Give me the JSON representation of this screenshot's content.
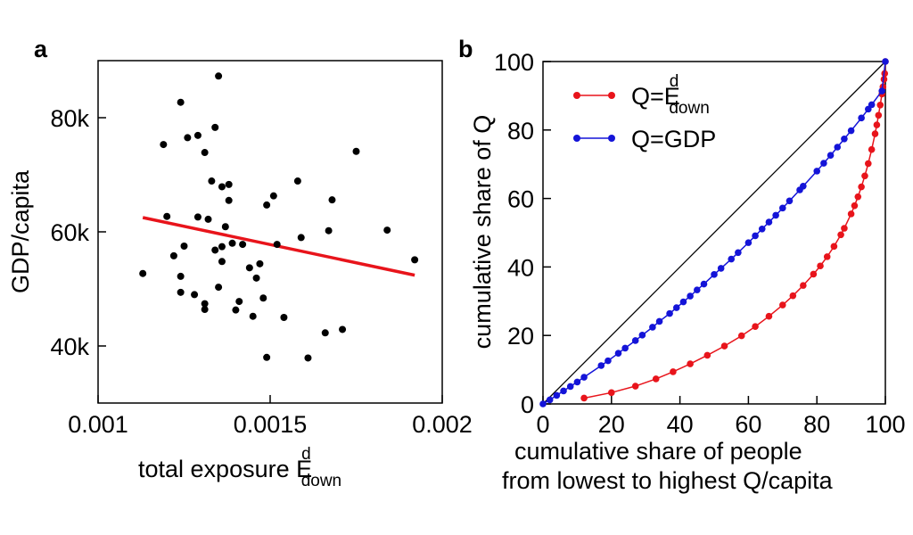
{
  "chart_data": [
    {
      "panel_label": "a",
      "type": "scatter",
      "xlabel": {
        "main": "total exposure E",
        "sup": "d",
        "sub": "down"
      },
      "ylabel": "GDP/capita",
      "xlim": [
        0.001,
        0.002
      ],
      "ylim": [
        30000,
        90000
      ],
      "xticks": [
        0.001,
        0.0015,
        0.002
      ],
      "xtick_labels": [
        "0.001",
        "0.0015",
        "0.002"
      ],
      "yticks": [
        40000,
        60000,
        80000
      ],
      "ytick_labels": [
        "40k",
        "60k",
        "80k"
      ],
      "grid": false,
      "points_color": "#000000",
      "points": [
        [
          0.00113,
          52700
        ],
        [
          0.00119,
          75300
        ],
        [
          0.0012,
          62700
        ],
        [
          0.00122,
          55800
        ],
        [
          0.00124,
          82700
        ],
        [
          0.00124,
          52200
        ],
        [
          0.00124,
          49400
        ],
        [
          0.00125,
          57500
        ],
        [
          0.00126,
          76500
        ],
        [
          0.00128,
          49000
        ],
        [
          0.00129,
          62600
        ],
        [
          0.00129,
          76900
        ],
        [
          0.00131,
          73900
        ],
        [
          0.00131,
          47400
        ],
        [
          0.00131,
          46400
        ],
        [
          0.00132,
          62200
        ],
        [
          0.00133,
          68900
        ],
        [
          0.00134,
          56800
        ],
        [
          0.00134,
          78300
        ],
        [
          0.00135,
          50300
        ],
        [
          0.00135,
          87300
        ],
        [
          0.00136,
          57400
        ],
        [
          0.00136,
          54800
        ],
        [
          0.00136,
          67900
        ],
        [
          0.00137,
          60900
        ],
        [
          0.00138,
          68300
        ],
        [
          0.00138,
          65500
        ],
        [
          0.00139,
          58000
        ],
        [
          0.0014,
          46300
        ],
        [
          0.00141,
          47800
        ],
        [
          0.00142,
          57800
        ],
        [
          0.00144,
          53700
        ],
        [
          0.00145,
          45200
        ],
        [
          0.00146,
          51900
        ],
        [
          0.00147,
          54400
        ],
        [
          0.00148,
          48400
        ],
        [
          0.00149,
          64700
        ],
        [
          0.00149,
          38000
        ],
        [
          0.00151,
          66300
        ],
        [
          0.00152,
          57800
        ],
        [
          0.00154,
          45000
        ],
        [
          0.00158,
          68900
        ],
        [
          0.00159,
          59000
        ],
        [
          0.00161,
          37900
        ],
        [
          0.00166,
          42300
        ],
        [
          0.00167,
          60200
        ],
        [
          0.00168,
          65600
        ],
        [
          0.00171,
          42900
        ],
        [
          0.00175,
          74100
        ],
        [
          0.00184,
          60300
        ],
        [
          0.00192,
          55100
        ]
      ],
      "fit_line": {
        "color": "#e8141b",
        "x": [
          0.00113,
          0.00192
        ],
        "y": [
          62500,
          52400
        ]
      }
    },
    {
      "panel_label": "b",
      "type": "line",
      "xlabel": [
        "cumulative share of people",
        "from lowest to highest Q/capita"
      ],
      "ylabel": "cumulative share of Q",
      "xlim": [
        0,
        100
      ],
      "ylim": [
        0,
        100
      ],
      "xticks": [
        0,
        20,
        40,
        60,
        80,
        100
      ],
      "xtick_labels": [
        "0",
        "20",
        "40",
        "60",
        "80",
        "100"
      ],
      "yticks": [
        0,
        20,
        40,
        60,
        80,
        100
      ],
      "ytick_labels": [
        "0",
        "20",
        "40",
        "60",
        "80",
        "100"
      ],
      "grid": false,
      "legend_position": "top-left",
      "equality_line": {
        "x": [
          0,
          100
        ],
        "y": [
          0,
          100
        ],
        "color": "#000000"
      },
      "series": [
        {
          "name": "Q=E",
          "name_sup": "d",
          "name_sub": "down",
          "color": "#e8141b",
          "x": [
            12,
            20,
            27,
            33,
            38,
            43,
            48,
            53,
            58,
            62,
            66,
            70,
            73,
            76,
            79,
            81,
            83,
            85,
            87,
            88,
            90,
            91,
            92,
            93,
            94,
            95,
            96,
            97,
            97.5,
            98,
            98.5,
            99,
            99.3,
            99.6,
            99.8,
            100
          ],
          "y": [
            1.7,
            3.3,
            5.2,
            7.3,
            9.4,
            11.7,
            14.2,
            16.9,
            19.9,
            22.6,
            25.6,
            28.9,
            31.6,
            34.6,
            37.9,
            40.3,
            43.0,
            46.0,
            49.4,
            51.3,
            55.5,
            57.9,
            60.5,
            63.4,
            66.6,
            70.2,
            74.3,
            78.9,
            81.5,
            84.3,
            87.3,
            90.5,
            92.6,
            94.8,
            96.5,
            100
          ]
        },
        {
          "name": "Q=GDP",
          "color": "#1414d8",
          "x": [
            0,
            2,
            4,
            6,
            8,
            10,
            12,
            17,
            19,
            22,
            24,
            27,
            29,
            32,
            34,
            37,
            39,
            41,
            43,
            45,
            47,
            50,
            52,
            55,
            57,
            60,
            62,
            64,
            66,
            68,
            70,
            72,
            75,
            76,
            80,
            82,
            84,
            86,
            88,
            90,
            93,
            95,
            96,
            99,
            100
          ],
          "y": [
            0,
            1.2,
            2.5,
            3.8,
            5.1,
            6.4,
            7.8,
            11.2,
            12.6,
            14.8,
            16.3,
            18.5,
            20.1,
            22.4,
            24.1,
            26.4,
            28.1,
            29.8,
            31.5,
            33.3,
            35.0,
            37.8,
            39.6,
            42.3,
            44.2,
            47.1,
            49.1,
            51.1,
            53.1,
            55.1,
            57.2,
            59.3,
            62.5,
            63.6,
            68.0,
            70.3,
            72.6,
            75.0,
            77.4,
            79.8,
            83.5,
            86.1,
            87.4,
            91.4,
            100
          ]
        }
      ]
    }
  ]
}
